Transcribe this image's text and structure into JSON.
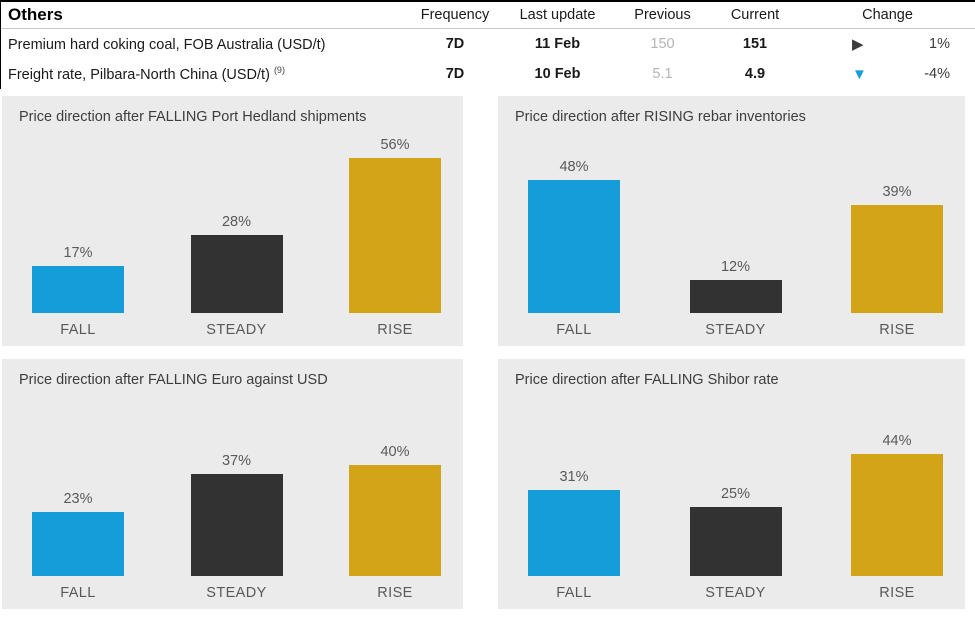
{
  "table": {
    "title": "Others",
    "columns": {
      "frequency": "Frequency",
      "last_update": "Last update",
      "previous": "Previous",
      "current": "Current",
      "change": "Change"
    },
    "rows": [
      {
        "name": "Premium hard coking coal, FOB Australia (USD/t)",
        "superscript": "",
        "frequency": "7D",
        "last_update": "11 Feb",
        "previous": "150",
        "current": "151",
        "change_glyph": "▶",
        "change_icon": "right-triangle-icon",
        "change_color": "#3c3c3c",
        "change_pct": "1%"
      },
      {
        "name": "Freight rate, Pilbara-North China (USD/t)",
        "superscript": "(9)",
        "frequency": "7D",
        "last_update": "10 Feb",
        "previous": "5.1",
        "current": "4.9",
        "change_glyph": "▼",
        "change_icon": "down-triangle-icon",
        "change_color": "#1a9edb",
        "change_pct": "-4%"
      }
    ]
  },
  "colors": {
    "fall_blue": "#149dd9",
    "steady_dark": "#323232",
    "rise_gold": "#d4a418",
    "panel_bg": "#ebebeb",
    "previous_gray": "#b3b5b7",
    "label_gray": "#595959"
  },
  "chart_data": [
    {
      "type": "bar",
      "title": "Price direction after FALLING Port Hedland shipments",
      "categories": [
        "FALL",
        "STEADY",
        "RISE"
      ],
      "values": [
        17,
        28,
        56
      ],
      "unit": "%",
      "ylim": [
        0,
        60
      ],
      "grid": false,
      "legend": "none",
      "bar_colors": [
        "#149dd9",
        "#323232",
        "#d4a418"
      ]
    },
    {
      "type": "bar",
      "title": "Price direction after RISING rebar inventories",
      "categories": [
        "FALL",
        "STEADY",
        "RISE"
      ],
      "values": [
        48,
        12,
        39
      ],
      "unit": "%",
      "ylim": [
        0,
        60
      ],
      "grid": false,
      "legend": "none",
      "bar_colors": [
        "#149dd9",
        "#323232",
        "#d4a418"
      ]
    },
    {
      "type": "bar",
      "title": "Price direction after FALLING Euro against USD",
      "categories": [
        "FALL",
        "STEADY",
        "RISE"
      ],
      "values": [
        23,
        37,
        40
      ],
      "unit": "%",
      "ylim": [
        0,
        60
      ],
      "grid": false,
      "legend": "none",
      "bar_colors": [
        "#149dd9",
        "#323232",
        "#d4a418"
      ]
    },
    {
      "type": "bar",
      "title": "Price direction after FALLING Shibor rate",
      "categories": [
        "FALL",
        "STEADY",
        "RISE"
      ],
      "values": [
        31,
        25,
        44
      ],
      "unit": "%",
      "ylim": [
        0,
        60
      ],
      "grid": false,
      "legend": "none",
      "bar_colors": [
        "#149dd9",
        "#323232",
        "#d4a418"
      ]
    }
  ]
}
